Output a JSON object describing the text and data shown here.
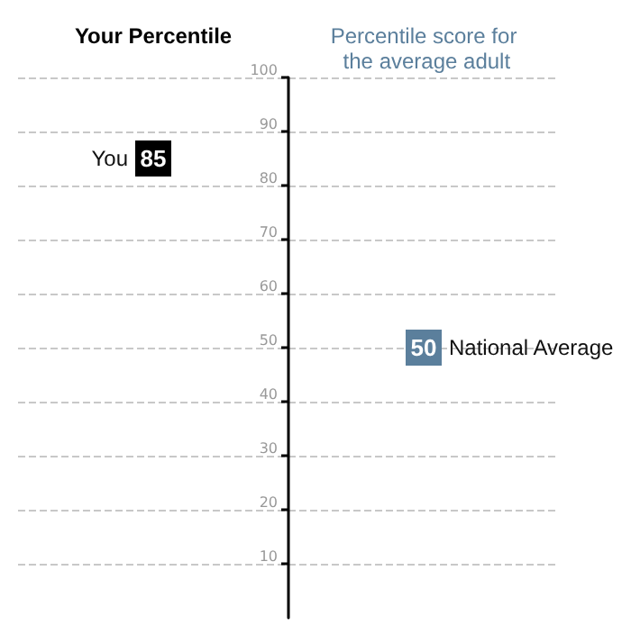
{
  "chart_data": {
    "type": "scatter",
    "categories": [
      "Your Percentile",
      "Percentile score for the average adult"
    ],
    "series": [
      {
        "values": [
          85,
          50
        ],
        "colors": [
          "#000000",
          "#5b7f9c"
        ]
      }
    ],
    "ylim": [
      0,
      100
    ],
    "yticks": [
      10,
      20,
      30,
      40,
      50,
      60,
      70,
      80,
      90,
      100
    ],
    "marker": "square",
    "data_labels": true,
    "grid": "y",
    "annotations": [
      {
        "text": "You",
        "x": "Your Percentile",
        "y": 85
      },
      {
        "text": "National Average",
        "x": "Percentile score for the average adult",
        "y": 50
      }
    ]
  }
}
